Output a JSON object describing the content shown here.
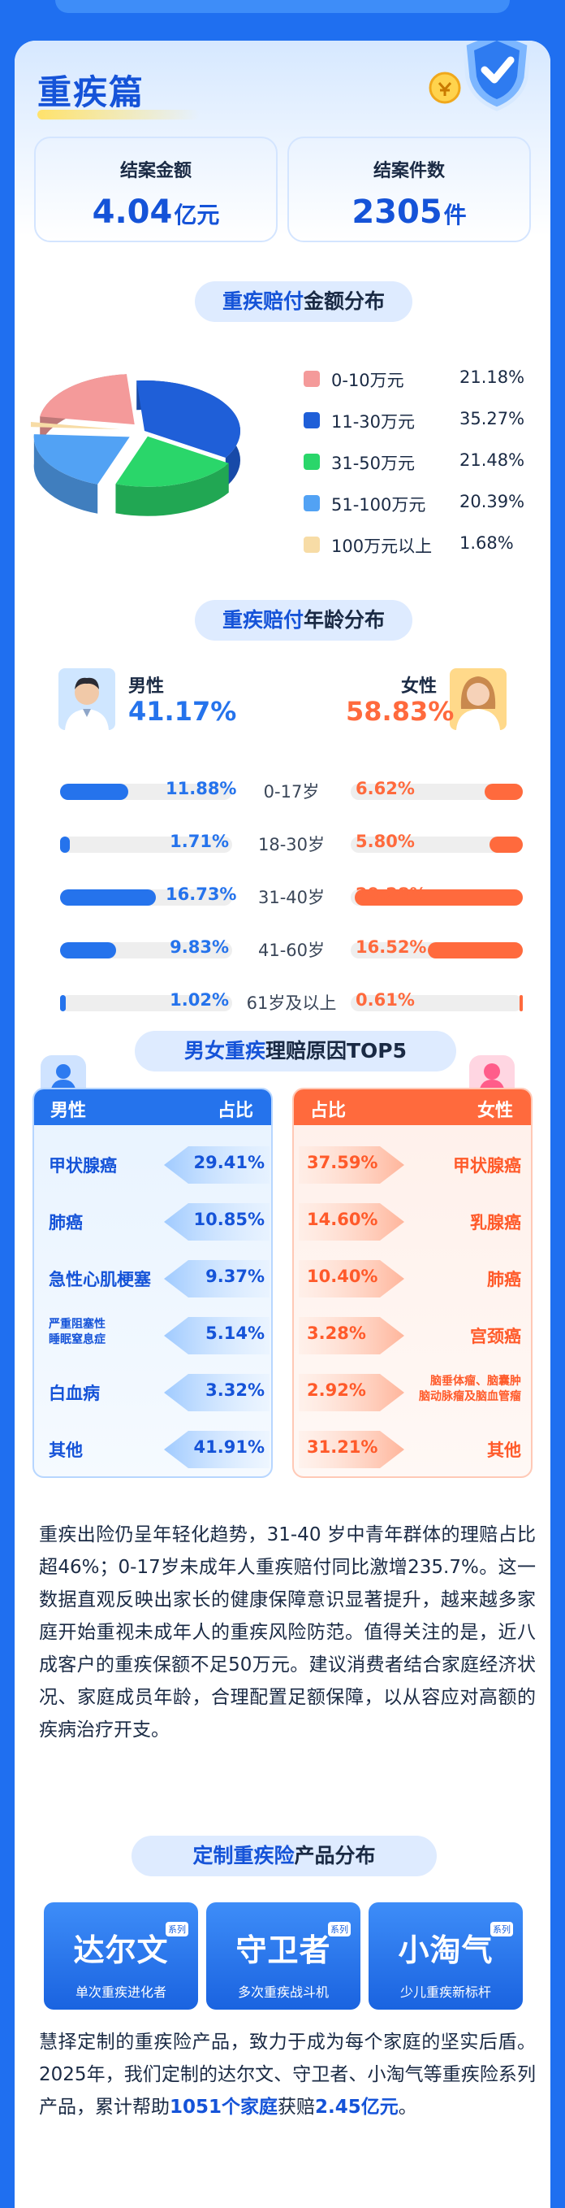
{
  "section": {
    "title": "重疾篇"
  },
  "stats": [
    {
      "label": "结案金额",
      "value": "4.04",
      "unit": "亿元"
    },
    {
      "label": "结案件数",
      "value": "2305",
      "unit": "件"
    }
  ],
  "amount_dist": {
    "title_hl": "重疾赔付",
    "title_rest": "金额分布",
    "legend": [
      {
        "name": "0-10万元",
        "pct": "21.18%",
        "color": "#f49a9a"
      },
      {
        "name": "11-30万元",
        "pct": "35.27%",
        "color": "#1f5fd8"
      },
      {
        "name": "31-50万元",
        "pct": "21.48%",
        "color": "#2ad66a"
      },
      {
        "name": "51-100万元",
        "pct": "20.39%",
        "color": "#52a2f4"
      },
      {
        "name": "100万元以上",
        "pct": "1.68%",
        "color": "#f7dca6"
      }
    ]
  },
  "chart_data": {
    "type": "pie",
    "categories": [
      "0-10万元",
      "11-30万元",
      "31-50万元",
      "51-100万元",
      "100万元以上"
    ],
    "values": [
      21.18,
      35.27,
      21.48,
      20.39,
      1.68
    ],
    "title": "重疾赔付金额分布",
    "legend_position": "right"
  },
  "age_dist": {
    "title_hl": "重疾赔付",
    "title_rest": "年龄分布",
    "male_label": "男性",
    "male_pct": "41.17%",
    "female_label": "女性",
    "female_pct": "58.83%",
    "male_color": "#2573ec",
    "female_color": "#ff6a3d",
    "rows": [
      {
        "label": "0-17岁",
        "male": "11.88%",
        "female": "6.62%",
        "male_v": 11.88,
        "female_v": 6.62
      },
      {
        "label": "18-30岁",
        "male": "1.71%",
        "female": "5.80%",
        "male_v": 1.71,
        "female_v": 5.8
      },
      {
        "label": "31-40岁",
        "male": "16.73%",
        "female": "29.28%",
        "male_v": 16.73,
        "female_v": 29.28
      },
      {
        "label": "41-60岁",
        "male": "9.83%",
        "female": "16.52%",
        "male_v": 9.83,
        "female_v": 16.52
      },
      {
        "label": "61岁及以上",
        "male": "1.02%",
        "female": "0.61%",
        "male_v": 1.02,
        "female_v": 0.61
      }
    ]
  },
  "top5": {
    "title_a": "男女重疾",
    "title_b": "理赔原因TOP5",
    "male_head": "男性",
    "male_col": "占比",
    "female_col": "占比",
    "female_head": "女性",
    "male": [
      {
        "name": "甲状腺癌",
        "pct": "29.41%"
      },
      {
        "name": "肺癌",
        "pct": "10.85%"
      },
      {
        "name": "急性心肌梗塞",
        "pct": "9.37%"
      },
      {
        "name": "严重阻塞性\n睡眠窒息症",
        "pct": "5.14%"
      },
      {
        "name": "白血病",
        "pct": "3.32%"
      },
      {
        "name": "其他",
        "pct": "41.91%"
      }
    ],
    "female": [
      {
        "name": "甲状腺癌",
        "pct": "37.59%"
      },
      {
        "name": "乳腺癌",
        "pct": "14.60%"
      },
      {
        "name": "肺癌",
        "pct": "10.40%"
      },
      {
        "name": "宫颈癌",
        "pct": "3.28%"
      },
      {
        "name": "脑垂体瘤、脑囊肿\n脑动脉瘤及脑血管瘤",
        "pct": "2.92%"
      },
      {
        "name": "其他",
        "pct": "31.21%"
      }
    ]
  },
  "paragraph1": "重疾出险仍呈年轻化趋势，31-40 岁中青年群体的理赔占比超46%；0-17岁未成年人重疾赔付同比激增235.7%。这一数据直观反映出家长的健康保障意识显著提升，越来越多家庭开始重视未成年人的重疾风险防范。值得关注的是，近八成客户的重疾保额不足50万元。建议消费者结合家庭经济状况、家庭成员年龄，合理配置足额保障，以从容应对高额的疾病治疗开支。",
  "products": {
    "title_a": "定制重疾险",
    "title_b": "产品分布",
    "items": [
      {
        "name": "达尔文",
        "tag": "系列",
        "sub": "单次重疾进化者"
      },
      {
        "name": "守卫者",
        "tag": "系列",
        "sub": "多次重疾战斗机"
      },
      {
        "name": "小淘气",
        "tag": "系列",
        "sub": "少儿重疾新标杆"
      }
    ]
  },
  "paragraph2": {
    "a": "慧择定制的重疾险产品，致力于成为每个家庭的坚实后盾。2025年，我们定制的达尔文、守卫者、小淘气等重疾险系列产品，累计帮助",
    "hl1": "1051个家庭",
    "b": "获赔",
    "hl2": "2.45亿元",
    "c": "。"
  }
}
